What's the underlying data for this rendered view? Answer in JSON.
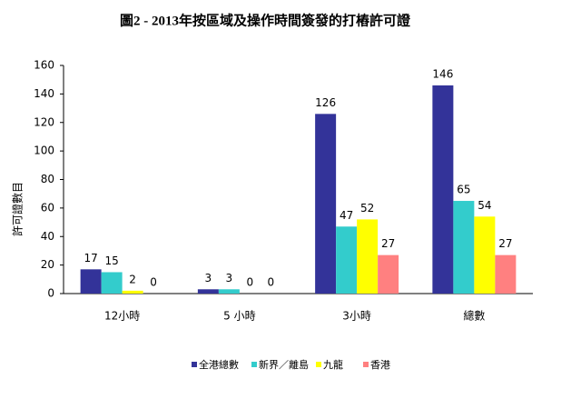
{
  "chart_data": {
    "type": "bar",
    "title": "圖2 - 2013年按區域及操作時間簽發的打樁許可證",
    "y_label": "許可證數目",
    "categories": [
      "12小時",
      "5 小時",
      "3小時",
      "總數"
    ],
    "series": [
      {
        "name": "全港總數",
        "color": "#333399",
        "values": [
          17,
          3,
          126,
          146
        ]
      },
      {
        "name": "新界／離島",
        "color": "#33cccc",
        "values": [
          15,
          3,
          47,
          65
        ]
      },
      {
        "name": "九龍",
        "color": "#ffff00",
        "values": [
          2,
          0,
          52,
          54
        ]
      },
      {
        "name": "香港",
        "color": "#ff8080",
        "values": [
          0,
          0,
          27,
          27
        ]
      }
    ],
    "ylim": [
      0,
      160
    ],
    "yticks": [
      0,
      20,
      40,
      60,
      80,
      100,
      120,
      140,
      160
    ],
    "grid": false,
    "legend": "bottom"
  }
}
